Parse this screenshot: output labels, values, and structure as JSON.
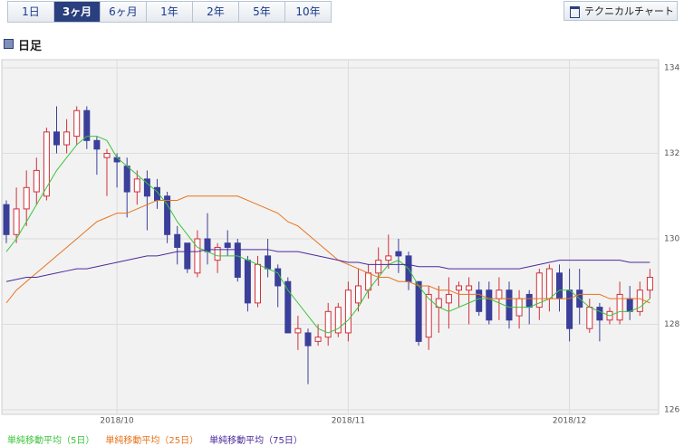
{
  "tabs": [
    "1日",
    "3ヶ月",
    "6ヶ月",
    "1年",
    "2年",
    "5年",
    "10年"
  ],
  "selected_tab": 1,
  "button": "テクニカルチャート",
  "section_title": "日足",
  "chart_data": {
    "type": "candlestick",
    "categories": [
      null,
      null,
      null,
      null,
      null,
      null,
      null,
      null,
      null,
      null,
      null,
      "2018/10",
      null,
      null,
      null,
      null,
      null,
      null,
      null,
      null,
      null,
      null,
      null,
      null,
      null,
      null,
      null,
      null,
      null,
      null,
      null,
      null,
      null,
      null,
      "2018/11",
      null,
      null,
      null,
      null,
      null,
      null,
      null,
      null,
      null,
      null,
      null,
      null,
      null,
      null,
      null,
      null,
      null,
      null,
      null,
      null,
      null,
      "2018/12",
      null,
      null,
      null,
      null,
      null,
      null,
      null,
      null
    ],
    "open": [
      130.8,
      130.1,
      130.7,
      131.1,
      131.0,
      132.5,
      132.2,
      132.4,
      133.0,
      132.3,
      131.9,
      131.9,
      131.7,
      131.1,
      131.4,
      131.2,
      131.0,
      130.1,
      129.9,
      129.2,
      130.0,
      129.5,
      129.9,
      129.9,
      129.5,
      128.5,
      129.6,
      129.3,
      129.0,
      127.8,
      127.8,
      127.6,
      127.7,
      127.8,
      127.8,
      128.5,
      128.8,
      129.2,
      129.5,
      129.7,
      129.6,
      129.0,
      127.7,
      128.4,
      128.5,
      128.8,
      128.8,
      128.8,
      128.8,
      128.6,
      128.8,
      128.2,
      128.7,
      128.4,
      128.6,
      129.2,
      128.8,
      128.8,
      127.9,
      128.4,
      128.1,
      128.1,
      128.6,
      128.3,
      128.8
    ],
    "high": [
      130.9,
      131.2,
      131.6,
      131.9,
      132.6,
      133.1,
      132.8,
      133.1,
      133.1,
      132.4,
      132.1,
      132.0,
      131.9,
      131.6,
      131.6,
      131.4,
      131.1,
      130.3,
      129.9,
      130.2,
      130.6,
      129.9,
      130.2,
      130.0,
      129.6,
      129.6,
      130.0,
      129.4,
      129.1,
      128.2,
      127.9,
      128.0,
      128.5,
      128.5,
      129.0,
      129.3,
      129.4,
      129.8,
      130.1,
      130.0,
      129.7,
      129.0,
      128.9,
      128.9,
      129.1,
      129.0,
      129.1,
      129.0,
      129.0,
      129.1,
      129.0,
      128.8,
      128.8,
      129.3,
      129.4,
      129.4,
      129.3,
      129.3,
      128.6,
      128.5,
      128.4,
      129.0,
      128.9,
      129.0,
      129.3
    ],
    "low": [
      129.9,
      129.9,
      130.3,
      130.8,
      130.9,
      132.0,
      132.0,
      132.2,
      132.1,
      131.5,
      131.0,
      131.2,
      130.5,
      130.8,
      130.2,
      130.7,
      129.9,
      129.4,
      129.2,
      129.1,
      129.4,
      129.2,
      129.6,
      129.0,
      128.3,
      128.4,
      129.1,
      128.4,
      127.8,
      127.4,
      126.6,
      127.5,
      127.5,
      127.7,
      127.6,
      128.3,
      128.6,
      128.9,
      129.3,
      129.2,
      128.8,
      127.5,
      127.4,
      127.8,
      127.9,
      128.4,
      128.0,
      128.2,
      128.0,
      128.1,
      127.9,
      127.9,
      128.0,
      128.1,
      128.3,
      128.3,
      127.6,
      128.0,
      127.8,
      127.6,
      128.0,
      128.0,
      128.1,
      128.2,
      128.6
    ],
    "close": [
      130.1,
      130.7,
      131.2,
      131.6,
      132.5,
      132.2,
      132.5,
      133.0,
      132.3,
      132.1,
      132.0,
      131.8,
      131.1,
      131.4,
      131.0,
      130.9,
      130.1,
      129.8,
      129.3,
      130.0,
      129.7,
      129.8,
      129.8,
      129.1,
      128.5,
      129.4,
      129.3,
      128.9,
      127.8,
      127.9,
      127.5,
      127.7,
      128.3,
      128.4,
      128.8,
      128.9,
      129.2,
      129.5,
      129.6,
      129.6,
      129.0,
      127.6,
      128.7,
      128.6,
      128.7,
      128.9,
      128.9,
      128.3,
      128.1,
      128.8,
      128.1,
      128.6,
      128.4,
      129.2,
      129.3,
      128.6,
      127.9,
      128.4,
      128.4,
      128.1,
      128.3,
      128.7,
      128.3,
      128.8,
      129.1
    ],
    "up_color": "#d0303a",
    "down_color": "#3a3f9a",
    "series": [
      {
        "name": "単純移動平均（5日）",
        "color": "#3cc43c",
        "values": [
          129.7,
          130.0,
          130.4,
          130.8,
          131.2,
          131.6,
          131.9,
          132.2,
          132.4,
          132.4,
          132.3,
          131.9,
          131.7,
          131.5,
          131.3,
          131.1,
          130.8,
          130.4,
          130.1,
          129.8,
          129.7,
          129.6,
          129.6,
          129.6,
          129.5,
          129.4,
          129.3,
          129.2,
          128.8,
          128.5,
          128.2,
          127.9,
          127.8,
          127.9,
          128.1,
          128.4,
          128.8,
          129.1,
          129.4,
          129.5,
          129.3,
          128.9,
          128.6,
          128.4,
          128.3,
          128.4,
          128.5,
          128.6,
          128.6,
          128.5,
          128.4,
          128.4,
          128.4,
          128.5,
          128.6,
          128.8,
          128.8,
          128.6,
          128.4,
          128.3,
          128.2,
          128.3,
          128.3,
          128.4,
          128.6
        ]
      },
      {
        "name": "単純移動平均（25日）",
        "color": "#e8731c",
        "values": [
          128.5,
          128.8,
          129.0,
          129.2,
          129.4,
          129.6,
          129.8,
          130.0,
          130.2,
          130.4,
          130.5,
          130.6,
          130.6,
          130.7,
          130.8,
          130.9,
          130.9,
          130.9,
          131.0,
          131.0,
          131.0,
          131.0,
          131.0,
          131.0,
          130.9,
          130.8,
          130.7,
          130.6,
          130.4,
          130.3,
          130.1,
          129.9,
          129.7,
          129.5,
          129.4,
          129.3,
          129.2,
          129.1,
          129.1,
          129.0,
          129.0,
          128.9,
          128.9,
          128.8,
          128.8,
          128.7,
          128.7,
          128.7,
          128.6,
          128.6,
          128.6,
          128.6,
          128.6,
          128.6,
          128.6,
          128.6,
          128.6,
          128.7,
          128.7,
          128.7,
          128.6,
          128.6,
          128.6,
          128.6,
          128.5
        ]
      },
      {
        "name": "単純移動平均（75日）",
        "color": "#4b2a9c",
        "values": [
          129.0,
          129.05,
          129.1,
          129.1,
          129.15,
          129.2,
          129.25,
          129.3,
          129.3,
          129.35,
          129.4,
          129.45,
          129.5,
          129.55,
          129.6,
          129.6,
          129.65,
          129.7,
          129.7,
          129.7,
          129.75,
          129.75,
          129.75,
          129.75,
          129.75,
          129.75,
          129.75,
          129.7,
          129.7,
          129.7,
          129.65,
          129.6,
          129.55,
          129.5,
          129.45,
          129.45,
          129.4,
          129.4,
          129.4,
          129.4,
          129.4,
          129.35,
          129.35,
          129.35,
          129.3,
          129.3,
          129.3,
          129.3,
          129.3,
          129.3,
          129.3,
          129.3,
          129.35,
          129.4,
          129.45,
          129.5,
          129.5,
          129.5,
          129.5,
          129.5,
          129.5,
          129.5,
          129.45,
          129.45,
          129.45
        ]
      }
    ],
    "ylim": [
      126,
      134
    ],
    "yticks": [
      126,
      128,
      130,
      132,
      134
    ],
    "grid": true
  }
}
